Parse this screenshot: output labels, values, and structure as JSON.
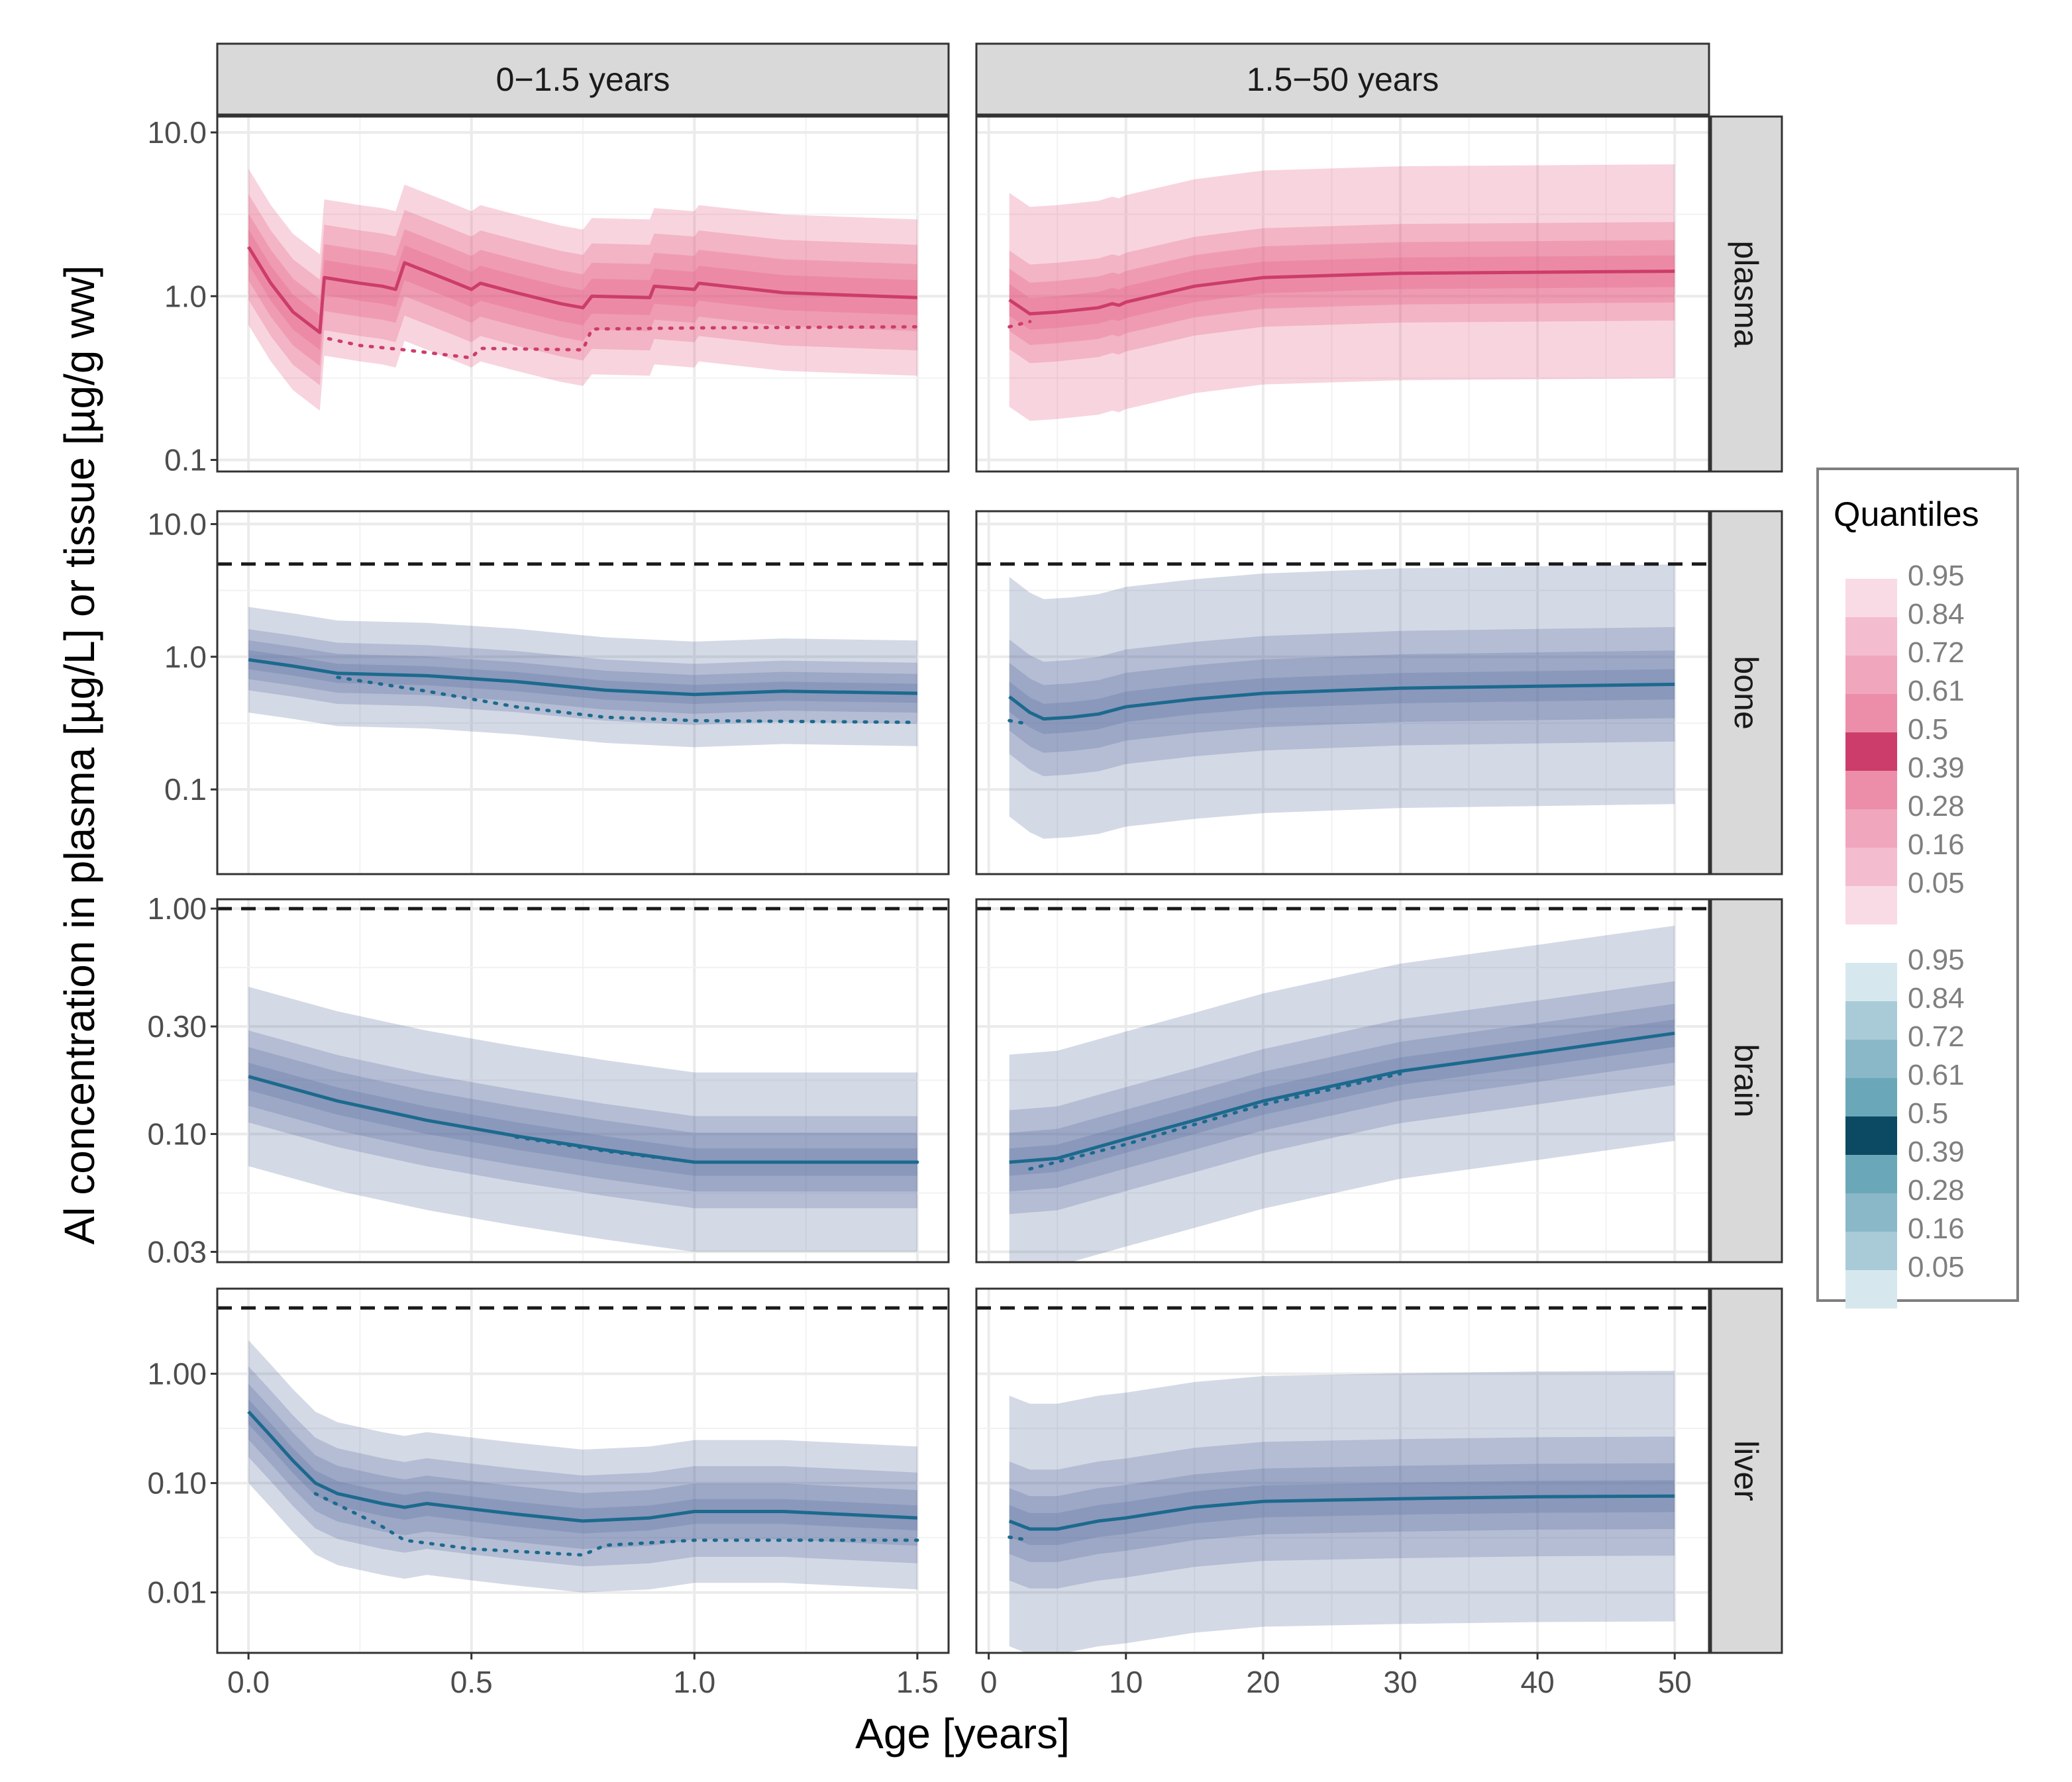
{
  "chart_data": {
    "type": "line",
    "description_of_layout": "faceted grid: rows = compartments, columns = age ranges; quantile ribbons with median (solid) and dotted comparison line",
    "xlabel": "Age [years]",
    "ylabel": "Al concentration in plasma [µg/L] or tissue [µg/g ww]",
    "y_scale": "log10",
    "grid": true,
    "legend_position": "right",
    "columns": [
      {
        "label": "0−1.5 years",
        "xlim": [
          -0.07,
          1.57
        ],
        "ticks": [
          0,
          0.5,
          1,
          1.5
        ],
        "tick_labels": [
          "0.0",
          "0.5",
          "1.0",
          "1.5"
        ]
      },
      {
        "label": "1.5−50 years",
        "xlim": [
          -0.9,
          52.5
        ],
        "ticks": [
          0,
          10,
          20,
          30,
          40,
          50
        ],
        "tick_labels": [
          "0",
          "10",
          "20",
          "30",
          "40",
          "50"
        ]
      }
    ],
    "rows": [
      {
        "label": "plasma",
        "palette": "pink",
        "ylim": [
          0.085,
          12.5
        ],
        "ticks": [
          0.1,
          1,
          10
        ],
        "tick_labels": [
          "0.1",
          "1.0",
          "10.0"
        ],
        "reference_line": null,
        "panels": [
          {
            "x": [
              0,
              0.05,
              0.1,
              0.16,
              0.17,
              0.25,
              0.3,
              0.33,
              0.35,
              0.45,
              0.5,
              0.52,
              0.6,
              0.7,
              0.75,
              0.77,
              0.9,
              0.91,
              1.0,
              1.01,
              1.2,
              1.5
            ],
            "median": [
              2.0,
              1.2,
              0.8,
              0.6,
              1.3,
              1.2,
              1.15,
              1.1,
              1.6,
              1.25,
              1.1,
              1.2,
              1.05,
              0.9,
              0.85,
              1.0,
              0.98,
              1.15,
              1.1,
              1.2,
              1.05,
              0.98
            ],
            "ratios": [
              1.28,
              1.6,
              2.1,
              3.0
            ],
            "dotted": {
              "x": [
                0.18,
                0.25,
                0.35,
                0.5,
                0.52,
                0.75,
                0.77,
                1.0,
                1.5
              ],
              "y": [
                0.55,
                0.5,
                0.47,
                0.42,
                0.48,
                0.47,
                0.63,
                0.64,
                0.65
              ]
            }
          },
          {
            "x": [
              1.5,
              3,
              5,
              8,
              9,
              9.5,
              10,
              15,
              20,
              30,
              40,
              50
            ],
            "median": [
              0.95,
              0.78,
              0.8,
              0.85,
              0.9,
              0.88,
              0.92,
              1.15,
              1.3,
              1.38,
              1.4,
              1.42
            ],
            "ratios": [
              1.25,
              1.55,
              2.0,
              4.5
            ],
            "dotted": {
              "x": [
                1.5,
                3
              ],
              "y": [
                0.65,
                0.7
              ]
            }
          }
        ]
      },
      {
        "label": "bone",
        "palette": "blue",
        "ylim": [
          0.023,
          12.5
        ],
        "ticks": [
          0.1,
          1,
          10
        ],
        "tick_labels": [
          "0.1",
          "1.0",
          "10.0"
        ],
        "reference_line": 5.0,
        "panels": [
          {
            "x": [
              0,
              0.1,
              0.2,
              0.4,
              0.6,
              0.8,
              1.0,
              1.2,
              1.5
            ],
            "median": [
              0.95,
              0.85,
              0.75,
              0.72,
              0.65,
              0.56,
              0.52,
              0.55,
              0.53
            ],
            "ratios": [
              1.18,
              1.4,
              1.7,
              2.5
            ],
            "dotted": {
              "x": [
                0.2,
                0.4,
                0.6,
                0.8,
                1.0,
                1.5
              ],
              "y": [
                0.7,
                0.55,
                0.42,
                0.35,
                0.33,
                0.32
              ]
            }
          },
          {
            "x": [
              1.5,
              3,
              4,
              6,
              8,
              10,
              15,
              20,
              30,
              40,
              50
            ],
            "median": [
              0.5,
              0.38,
              0.34,
              0.35,
              0.37,
              0.42,
              0.48,
              0.53,
              0.58,
              0.6,
              0.62
            ],
            "ratios": [
              1.3,
              1.8,
              2.7,
              8.0
            ],
            "dotted": {
              "x": [
                1.5,
                3
              ],
              "y": [
                0.33,
                0.31
              ]
            }
          }
        ]
      },
      {
        "label": "brain",
        "palette": "blue",
        "ylim": [
          0.027,
          1.1
        ],
        "ticks": [
          0.03,
          0.1,
          0.3,
          1
        ],
        "tick_labels": [
          "0.03",
          "0.10",
          "0.30",
          "1.00"
        ],
        "reference_line": 1.0,
        "panels": [
          {
            "x": [
              0,
              0.2,
              0.4,
              0.6,
              0.8,
              1.0,
              1.5
            ],
            "median": [
              0.18,
              0.14,
              0.115,
              0.098,
              0.085,
              0.075,
              0.075
            ],
            "ratios": [
              1.15,
              1.35,
              1.6,
              2.5
            ],
            "dotted": {
              "x": [
                0.6,
                0.8,
                1.0,
                1.5
              ],
              "y": [
                0.097,
                0.084,
                0.075,
                0.075
              ]
            }
          },
          {
            "x": [
              1.5,
              5,
              10,
              15,
              20,
              30,
              40,
              50
            ],
            "median": [
              0.075,
              0.078,
              0.095,
              0.115,
              0.14,
              0.19,
              0.23,
              0.28
            ],
            "ratios": [
              1.15,
              1.35,
              1.7,
              3.0
            ],
            "dotted": {
              "x": [
                3,
                10,
                20,
                30
              ],
              "y": [
                0.07,
                0.09,
                0.135,
                0.185
              ]
            }
          }
        ]
      },
      {
        "label": "liver",
        "palette": "blue",
        "ylim": [
          0.0028,
          6.0
        ],
        "ticks": [
          0.01,
          0.1,
          1
        ],
        "tick_labels": [
          "0.01",
          "0.10",
          "1.00"
        ],
        "reference_line": 4.0,
        "panels": [
          {
            "x": [
              0,
              0.05,
              0.1,
              0.15,
              0.2,
              0.3,
              0.35,
              0.4,
              0.5,
              0.6,
              0.75,
              0.9,
              1.0,
              1.2,
              1.5
            ],
            "median": [
              0.45,
              0.27,
              0.16,
              0.1,
              0.08,
              0.065,
              0.06,
              0.065,
              0.058,
              0.052,
              0.045,
              0.048,
              0.055,
              0.055,
              0.048
            ],
            "ratios": [
              1.3,
              1.8,
              2.6,
              4.5
            ],
            "dotted": {
              "x": [
                0.15,
                0.3,
                0.35,
                0.5,
                0.75,
                0.8,
                1.0,
                1.5
              ],
              "y": [
                0.08,
                0.04,
                0.03,
                0.025,
                0.022,
                0.027,
                0.03,
                0.03
              ]
            }
          },
          {
            "x": [
              1.5,
              3,
              5,
              8,
              10,
              15,
              20,
              30,
              40,
              50
            ],
            "median": [
              0.045,
              0.038,
              0.038,
              0.045,
              0.048,
              0.06,
              0.068,
              0.072,
              0.075,
              0.076
            ],
            "ratios": [
              1.4,
              2.0,
              3.5,
              14.0
            ],
            "dotted": {
              "x": [
                1.5,
                3
              ],
              "y": [
                0.032,
                0.03
              ]
            }
          }
        ]
      }
    ],
    "legend": {
      "title": "Quantiles",
      "groups": [
        {
          "palette": "pink",
          "labels": [
            "0.95",
            "0.84",
            "0.72",
            "0.61",
            "0.5",
            "0.39",
            "0.28",
            "0.16",
            "0.05"
          ]
        },
        {
          "palette": "blue",
          "labels": [
            "0.95",
            "0.84",
            "0.72",
            "0.61",
            "0.5",
            "0.39",
            "0.28",
            "0.16",
            "0.05"
          ]
        }
      ]
    },
    "colors": {
      "pink_line": "#cc3d6b",
      "pink_band": "#e3577e",
      "blue_line": "#1c6a8e",
      "blue_band": "#5a6e9e",
      "legend_pink": [
        "#f9dbe5",
        "#f4bccf",
        "#f0a6bd",
        "#ec8ea9",
        "#cc3d6b",
        "#ec8ea9",
        "#f0a6bd",
        "#f4bccf",
        "#f9dbe5"
      ],
      "legend_blue": [
        "#d6e8ee",
        "#a9cbd8",
        "#8ab8c8",
        "#6aa7b8",
        "#0b4a62",
        "#6aa7b8",
        "#8ab8c8",
        "#a9cbd8",
        "#d6e8ee"
      ]
    }
  }
}
